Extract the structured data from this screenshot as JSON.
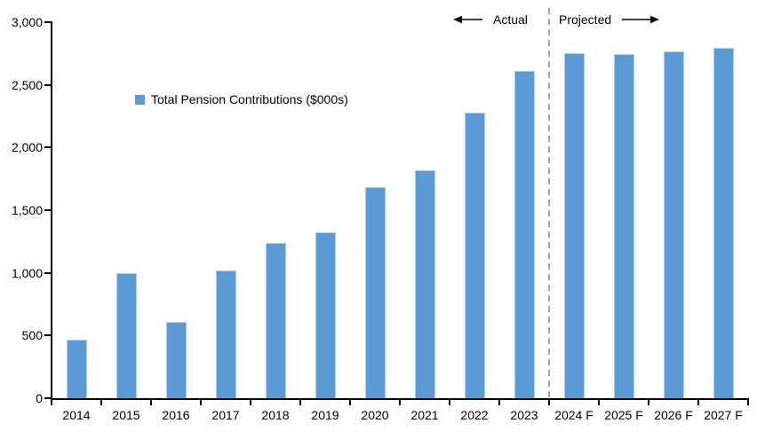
{
  "chart_data": {
    "type": "bar",
    "legend": [
      {
        "label": "Total Pension Contributions ($000s)"
      }
    ],
    "categories": [
      "2014",
      "2015",
      "2016",
      "2017",
      "2018",
      "2019",
      "2020",
      "2021",
      "2022",
      "2023",
      "2024 F",
      "2025 F",
      "2026 F",
      "2027 F"
    ],
    "values": [
      470,
      995,
      610,
      1020,
      1235,
      1325,
      1685,
      1820,
      2280,
      2610,
      2755,
      2745,
      2770,
      2795
    ],
    "ylim": [
      0,
      3000
    ],
    "ytick_interval": 500,
    "ytick_labels": [
      "0",
      "500",
      "1,000",
      "1,500",
      "2,000",
      "2,500",
      "3,000"
    ],
    "grid": false,
    "legend_position": "inside-upper-left",
    "annotations": {
      "actual_label": "Actual",
      "projected_label": "Projected",
      "divider_after_category": "2023"
    },
    "colors": {
      "bar_fill": "#5B9BD5",
      "bar_edge": "#AECBEB",
      "axis": "#000000",
      "divider": "#A6A6A6",
      "text": "#000000"
    }
  }
}
